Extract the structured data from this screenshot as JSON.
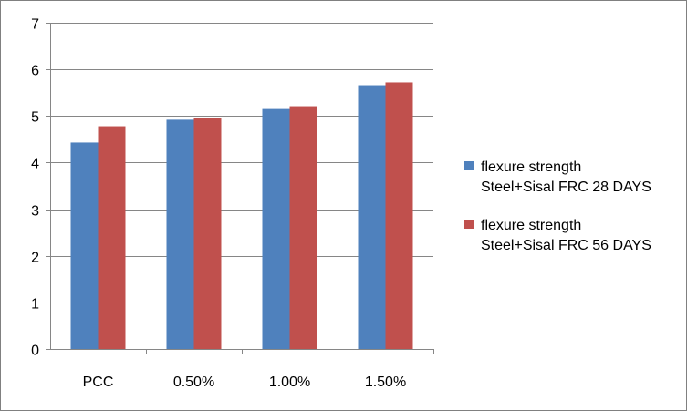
{
  "chart_data": {
    "type": "bar",
    "title": "",
    "xlabel": "",
    "ylabel": "",
    "categories": [
      "PCC",
      "0.50%",
      "1.00%",
      "1.50%"
    ],
    "ylim": [
      0,
      7
    ],
    "yticks": [
      0,
      1,
      2,
      3,
      4,
      5,
      6,
      7
    ],
    "grid": true,
    "legend_position": "right",
    "series": [
      {
        "name": "flexure strength Steel+Sisal FRC 28 DAYS",
        "name_lines": [
          "flexure strength",
          "Steel+Sisal FRC 28 DAYS"
        ],
        "color": "#4f81bd",
        "values": [
          4.43,
          4.92,
          5.15,
          5.66
        ]
      },
      {
        "name": "flexure strength Steel+Sisal FRC 56 DAYS",
        "name_lines": [
          "flexure strength",
          "Steel+Sisal FRC 56 DAYS"
        ],
        "color": "#c0504d",
        "values": [
          4.78,
          4.96,
          5.21,
          5.72
        ]
      }
    ]
  }
}
